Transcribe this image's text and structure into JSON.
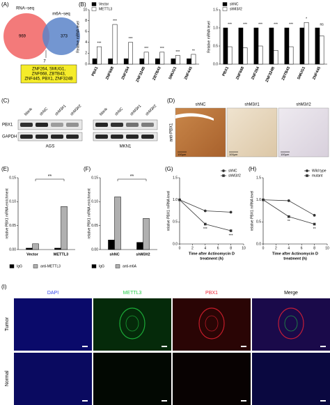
{
  "panel_labels": [
    "(A)",
    "(B)",
    "(C)",
    "(D)",
    "(E)",
    "(F)",
    "(G)",
    "(H)",
    "(I)"
  ],
  "venn": {
    "left_title": "RNA−seq",
    "right_title": "m6A−seq",
    "left_only": "969",
    "right_only": "373",
    "overlap": "7",
    "genes": [
      "ZNF264, SMUG1,",
      "ZNF668, ZBTB43,",
      "ZNF445, PBX1, ZNF324B"
    ]
  },
  "chart_data": [
    {
      "type": "bar",
      "ylabel": "Relative mRNA level",
      "categories": [
        "PBX1",
        "ZNF668",
        "ZNF264",
        "ZNF324B",
        "ZBTB43",
        "SMUG1",
        "ZNF445"
      ],
      "series": [
        {
          "name": "Vector",
          "color": "#000000",
          "values": [
            1,
            1,
            1,
            1,
            1,
            1,
            1
          ]
        },
        {
          "name": "METTL3",
          "color": "#ffffff",
          "values": [
            3.2,
            7.3,
            4,
            2.2,
            2.2,
            1.6,
            1.8
          ]
        }
      ],
      "significance": [
        "***",
        "***",
        "***",
        "***",
        "***",
        "***",
        "**"
      ],
      "ylim": [
        0,
        10
      ],
      "yticks": [
        0,
        2,
        4,
        6,
        8,
        10
      ],
      "legend": "top-left"
    },
    {
      "type": "bar",
      "ylabel": "Relative mRNA level",
      "categories": [
        "PBX1",
        "ZNF668",
        "ZNF264",
        "ZNF324B",
        "ZBTB43",
        "SMUG1",
        "ZNF445"
      ],
      "series": [
        {
          "name": "shNC",
          "color": "#000000",
          "values": [
            1,
            1,
            1,
            1,
            1,
            1,
            1
          ]
        },
        {
          "name": "shM3#2",
          "color": "#ffffff",
          "values": [
            0.48,
            0.45,
            0.5,
            0.38,
            0.48,
            1.15,
            0.78
          ]
        }
      ],
      "significance": [
        "***",
        "***",
        "***",
        "***",
        "***",
        "*",
        "ns"
      ],
      "ylim": [
        0,
        1.5
      ],
      "yticks": [
        {
          "value": 0,
          "label": "0.0"
        },
        {
          "value": 0.5,
          "label": "0.5"
        },
        {
          "value": 1,
          "label": "1.0"
        },
        {
          "value": 1.5,
          "label": "1.5"
        }
      ],
      "legend": "top-left"
    },
    {
      "type": "bar",
      "ylabel": "relative PBX1 mRNA enrichment",
      "categories": [
        "Vector",
        "METTL3"
      ],
      "series": [
        {
          "name": "IgG",
          "color": "#000000",
          "values": [
            0.003,
            0.003
          ]
        },
        {
          "name": "anti-METTL3",
          "color": "#b0b0b0",
          "values": [
            0.012,
            0.09
          ]
        }
      ],
      "bracket": "**",
      "ylim": [
        0,
        0.15
      ],
      "yticks": [
        {
          "value": 0,
          "label": "0.00"
        },
        0.05,
        {
          "value": 0.1,
          "label": "0.10"
        },
        0.15
      ],
      "legend": "bottom"
    },
    {
      "type": "bar",
      "ylabel": "relative PBX1 mRNA enrichment",
      "categories": [
        "shNC",
        "shM3#2"
      ],
      "series": [
        {
          "name": "IgG",
          "color": "#000000",
          "values": [
            0.02,
            0.015
          ]
        },
        {
          "name": "anti-m6A",
          "color": "#b0b0b0",
          "values": [
            0.11,
            0.065
          ]
        }
      ],
      "bracket": "**",
      "ylim": [
        0,
        0.15
      ],
      "yticks": [
        {
          "value": 0,
          "label": "0.00"
        },
        0.05,
        {
          "value": 0.1,
          "label": "0.10"
        },
        0.15
      ],
      "legend": "bottom"
    },
    {
      "type": "line",
      "ylabel": "relative PBX1 mRNA level",
      "xlabel": [
        "Time after Actinomycin D",
        "treatment (h)"
      ],
      "x": [
        0,
        4,
        8
      ],
      "series": [
        {
          "name": "shNC",
          "color": "#333333",
          "marker": "circle",
          "values": [
            1,
            0.75,
            0.72
          ]
        },
        {
          "name": "shM3#2",
          "color": "#333333",
          "marker": "square",
          "values": [
            1,
            0.45,
            0.3
          ]
        }
      ],
      "significance": [
        null,
        "***",
        "***"
      ],
      "xlim": [
        0,
        10
      ],
      "xticks": [
        0,
        2,
        4,
        6,
        8,
        10
      ],
      "ylim": [
        0,
        1.5
      ],
      "yticks": [
        {
          "value": 0,
          "label": "0.0"
        },
        {
          "value": 0.5,
          "label": "0.5"
        },
        {
          "value": 1,
          "label": "1.0"
        },
        {
          "value": 1.5,
          "label": "1.5"
        }
      ],
      "legend": "top-right"
    },
    {
      "type": "line",
      "ylabel": "relative PBX1 mRNA level",
      "xlabel": [
        "Time after Actinomycin D",
        "treatment (h)"
      ],
      "x": [
        0,
        4,
        8
      ],
      "series": [
        {
          "name": "Wild type",
          "color": "#333333",
          "marker": "circle",
          "values": [
            1,
            0.98,
            0.65
          ]
        },
        {
          "name": "mutant",
          "color": "#333333",
          "marker": "square",
          "values": [
            1,
            0.62,
            0.45
          ]
        }
      ],
      "significance": [
        null,
        "**",
        "**"
      ],
      "xlim": [
        0,
        10
      ],
      "xticks": [
        0,
        2,
        4,
        6,
        8,
        10
      ],
      "ylim": [
        0,
        1.5
      ],
      "yticks": [
        {
          "value": 0,
          "label": "0.0"
        },
        {
          "value": 0.5,
          "label": "0.5"
        },
        {
          "value": 1,
          "label": "1.0"
        },
        {
          "value": 1.5,
          "label": "1.5"
        }
      ],
      "legend": "top-right"
    }
  ],
  "blot": {
    "lanes": [
      "blank",
      "shNC",
      "shM3#1",
      "shM3#2",
      "blank",
      "shNC",
      "shM3#1",
      "shM3#2"
    ],
    "proteins": [
      "PBX1",
      "GAPDH"
    ],
    "cells": [
      "AGS",
      "MKN1"
    ]
  },
  "ihc": {
    "columns": [
      "shNC",
      "shM3#1",
      "shM3#2"
    ],
    "stain": "anti-PBX1",
    "scale": "100μm"
  },
  "if": {
    "channels": [
      "DAPI",
      "METTL3",
      "PBX1",
      "Merge"
    ],
    "rows": [
      "Tumor",
      "Normal"
    ]
  }
}
